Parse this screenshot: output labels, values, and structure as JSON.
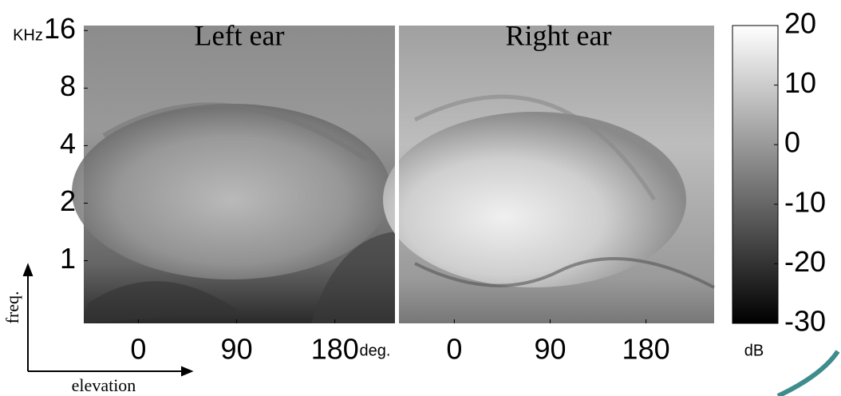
{
  "chart_data": {
    "type": "heatmap",
    "panels": [
      {
        "title": "Left ear",
        "xticks": [
          0,
          90,
          180
        ],
        "xlim": [
          -50,
          235
        ]
      },
      {
        "title": "Right ear",
        "xticks": [
          0,
          90,
          180
        ],
        "xlim": [
          -52,
          244
        ]
      }
    ],
    "x_unit": "deg.",
    "x_label": "elevation",
    "y_unit": "KHz",
    "y_label": "freq.",
    "y_log": true,
    "ylim": [
      0.47,
      17
    ],
    "yticks": [
      1,
      2,
      4,
      8,
      16
    ],
    "colorbar": {
      "label": "dB",
      "lim": [
        -30,
        20
      ],
      "ticks": [
        20,
        10,
        0,
        -10,
        -20,
        -30
      ]
    }
  }
}
